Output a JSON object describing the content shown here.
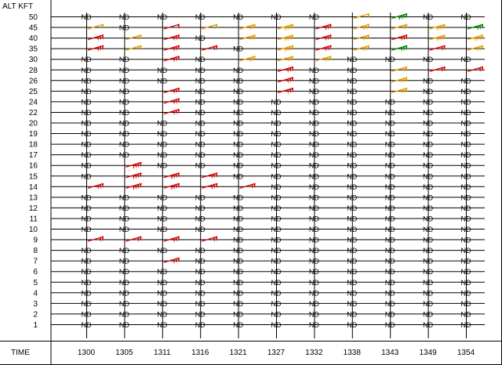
{
  "chart_data": {
    "type": "table",
    "title": "",
    "y_axis_label": "ALT KFT",
    "x_axis_label": "TIME",
    "no_data_label": "ND",
    "altitudes": [
      "50",
      "45",
      "40",
      "35",
      "30",
      "28",
      "26",
      "25",
      "24",
      "22",
      "20",
      "19",
      "18",
      "17",
      "16",
      "15",
      "14",
      "13",
      "12",
      "11",
      "10",
      "9",
      "8",
      "7",
      "6",
      "5",
      "4",
      "3",
      "2",
      "1"
    ],
    "times": [
      "1300",
      "1305",
      "1311",
      "1316",
      "1321",
      "1327",
      "1332",
      "1338",
      "1343",
      "1349",
      "1354"
    ],
    "grid": true,
    "colors": {
      "red": "#e00000",
      "orange": "#e8a000",
      "green": "#008800",
      "line": "#000000"
    },
    "observations": [
      {
        "time": "1300",
        "alt": "45",
        "color": "orange",
        "barbs": 1
      },
      {
        "time": "1300",
        "alt": "40",
        "color": "red",
        "barbs": 3
      },
      {
        "time": "1300",
        "alt": "35",
        "color": "red",
        "barbs": 3
      },
      {
        "time": "1300",
        "alt": "14",
        "color": "red",
        "barbs": 3
      },
      {
        "time": "1300",
        "alt": "9",
        "color": "red",
        "barbs": 2
      },
      {
        "time": "1305",
        "alt": "40",
        "color": "orange",
        "barbs": 2
      },
      {
        "time": "1305",
        "alt": "35",
        "color": "orange",
        "barbs": 2
      },
      {
        "time": "1305",
        "alt": "16",
        "color": "red",
        "barbs": 4
      },
      {
        "time": "1305",
        "alt": "15",
        "color": "red",
        "barbs": 4
      },
      {
        "time": "1305",
        "alt": "14",
        "color": "red",
        "barbs": 4
      },
      {
        "time": "1305",
        "alt": "9",
        "color": "red",
        "barbs": 2
      },
      {
        "time": "1311",
        "alt": "45",
        "color": "red",
        "barbs": 1
      },
      {
        "time": "1311",
        "alt": "40",
        "color": "red",
        "barbs": 3
      },
      {
        "time": "1311",
        "alt": "35",
        "color": "red",
        "barbs": 3
      },
      {
        "time": "1311",
        "alt": "30",
        "color": "red",
        "barbs": 3
      },
      {
        "time": "1311",
        "alt": "25",
        "color": "red",
        "barbs": 3
      },
      {
        "time": "1311",
        "alt": "24",
        "color": "red",
        "barbs": 3
      },
      {
        "time": "1311",
        "alt": "22",
        "color": "red",
        "barbs": 3
      },
      {
        "time": "1311",
        "alt": "15",
        "color": "red",
        "barbs": 4
      },
      {
        "time": "1311",
        "alt": "14",
        "color": "red",
        "barbs": 4
      },
      {
        "time": "1311",
        "alt": "9",
        "color": "red",
        "barbs": 3
      },
      {
        "time": "1311",
        "alt": "7",
        "color": "red",
        "barbs": 3
      },
      {
        "time": "1316",
        "alt": "45",
        "color": "orange",
        "barbs": 1
      },
      {
        "time": "1316",
        "alt": "35",
        "color": "red",
        "barbs": 2
      },
      {
        "time": "1316",
        "alt": "15",
        "color": "red",
        "barbs": 3
      },
      {
        "time": "1316",
        "alt": "14",
        "color": "red",
        "barbs": 3
      },
      {
        "time": "1316",
        "alt": "9",
        "color": "red",
        "barbs": 2
      },
      {
        "time": "1321",
        "alt": "45",
        "color": "orange",
        "barbs": 3
      },
      {
        "time": "1321",
        "alt": "40",
        "color": "orange",
        "barbs": 3
      },
      {
        "time": "1321",
        "alt": "30",
        "color": "orange",
        "barbs": 3
      },
      {
        "time": "1321",
        "alt": "14",
        "color": "red",
        "barbs": 2
      },
      {
        "time": "1327",
        "alt": "45",
        "color": "orange",
        "barbs": 4
      },
      {
        "time": "1327",
        "alt": "40",
        "color": "orange",
        "barbs": 4
      },
      {
        "time": "1327",
        "alt": "35",
        "color": "orange",
        "barbs": 4
      },
      {
        "time": "1327",
        "alt": "30",
        "color": "orange",
        "barbs": 3
      },
      {
        "time": "1327",
        "alt": "28",
        "color": "red",
        "barbs": 3
      },
      {
        "time": "1327",
        "alt": "26",
        "color": "red",
        "barbs": 3
      },
      {
        "time": "1327",
        "alt": "25",
        "color": "red",
        "barbs": 3
      },
      {
        "time": "1332",
        "alt": "45",
        "color": "red",
        "barbs": 3
      },
      {
        "time": "1332",
        "alt": "40",
        "color": "red",
        "barbs": 3
      },
      {
        "time": "1332",
        "alt": "35",
        "color": "red",
        "barbs": 3
      },
      {
        "time": "1332",
        "alt": "30",
        "color": "orange",
        "barbs": 3
      },
      {
        "time": "1338",
        "alt": "50",
        "color": "orange",
        "barbs": 1
      },
      {
        "time": "1338",
        "alt": "45",
        "color": "orange",
        "barbs": 3
      },
      {
        "time": "1338",
        "alt": "40",
        "color": "orange",
        "barbs": 3
      },
      {
        "time": "1338",
        "alt": "35",
        "color": "orange",
        "barbs": 3
      },
      {
        "time": "1343",
        "alt": "50",
        "color": "green",
        "barbs": 4
      },
      {
        "time": "1343",
        "alt": "45",
        "color": "orange",
        "barbs": 2
      },
      {
        "time": "1343",
        "alt": "40",
        "color": "red",
        "barbs": 3
      },
      {
        "time": "1343",
        "alt": "35",
        "color": "green",
        "barbs": 3
      },
      {
        "time": "1343",
        "alt": "28",
        "color": "orange",
        "barbs": 2
      },
      {
        "time": "1343",
        "alt": "26",
        "color": "orange",
        "barbs": 3
      },
      {
        "time": "1343",
        "alt": "25",
        "color": "orange",
        "barbs": 3
      },
      {
        "time": "1349",
        "alt": "45",
        "color": "orange",
        "barbs": 4
      },
      {
        "time": "1349",
        "alt": "40",
        "color": "orange",
        "barbs": 4
      },
      {
        "time": "1349",
        "alt": "35",
        "color": "red",
        "barbs": 2
      },
      {
        "time": "1349",
        "alt": "28",
        "color": "red",
        "barbs": 2
      },
      {
        "time": "1354",
        "alt": "45",
        "color": "green",
        "barbs": 3
      },
      {
        "time": "1354",
        "alt": "40",
        "color": "orange",
        "barbs": 4
      },
      {
        "time": "1354",
        "alt": "35",
        "color": "orange",
        "barbs": 3
      },
      {
        "time": "1354",
        "alt": "28",
        "color": "red",
        "barbs": 2
      }
    ]
  }
}
